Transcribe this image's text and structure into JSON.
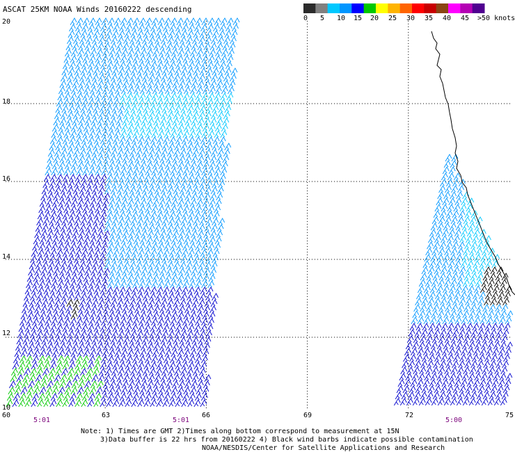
{
  "title": "ASCAT 25KM NOAA Winds 20160222 descending",
  "colorbar": {
    "colors": [
      "#2b2b2b",
      "#808080",
      "#00c8ff",
      "#0096ff",
      "#0000ff",
      "#00c800",
      "#ffff00",
      "#ffb400",
      "#ff6400",
      "#ff0000",
      "#c80000",
      "#8b4513",
      "#ff00ff",
      "#b400b4",
      "#500090"
    ],
    "labels": [
      "0",
      "5",
      "10",
      "15",
      "20",
      "25",
      "30",
      "35",
      "40",
      "45",
      ">50 knots"
    ]
  },
  "lat_labels": [
    "20",
    "18",
    "16",
    "14",
    "12",
    "10"
  ],
  "lon_labels": [
    "60",
    "63",
    "66",
    "69",
    "72",
    "75"
  ],
  "time_labels": [
    "5:01",
    "5:01",
    "5:00"
  ],
  "footer": {
    "line1": "Note: 1) Times are GMT 2)Times along bottom correspond to measurement at 15N",
    "line2": "3)Data buffer is 22 hrs from 20160222 4) Black wind barbs indicate possible contamination",
    "line3": "NOAA/NESDIS/Center for Satellite Applications and Research"
  },
  "barb_colors": {
    "slow": "#00c8ff",
    "mid": "#0096ff",
    "strong": "#0000cd",
    "fast": "#00c800",
    "contaminated": "#000000"
  },
  "coastline_color": "#000000"
}
